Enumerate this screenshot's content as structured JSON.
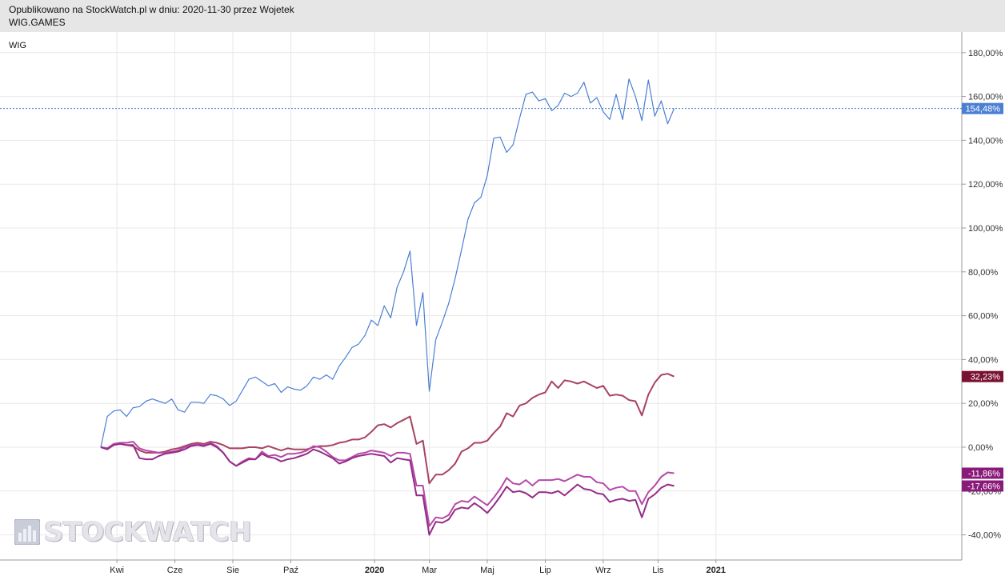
{
  "header": {
    "line1": "Opublikowano na StockWatch.pl w dniu: 2020-11-30 przez Wojetek",
    "line2": "WIG.GAMES"
  },
  "legend_label": "WIG",
  "logo_text": "STOCKWATCH",
  "colors": {
    "blue": "#4a7fd4",
    "red": "#a8435f",
    "magenta": "#b54aa8",
    "purple": "#952c88",
    "red_badge": "#7a1232",
    "purple_badge": "#8a1a7a",
    "header_bg": "#e6e6e6",
    "grid": "#e8e8e8"
  },
  "chart_data": {
    "type": "line",
    "title": "",
    "xlabel": "",
    "ylabel": "",
    "ylim": [
      -45,
      190
    ],
    "xlim": [
      0,
      107
    ],
    "grid": true,
    "y_ticks": [
      180,
      160,
      140,
      120,
      100,
      80,
      60,
      40,
      20,
      0,
      -20,
      -40
    ],
    "y_tick_labels": [
      "180,00%",
      "160,00%",
      "140,00%",
      "120,00%",
      "100,00%",
      "80,00%",
      "60,00%",
      "40,00%",
      "20,00%",
      "0,00%",
      "-20,00%",
      "-40,00%"
    ],
    "x_ticks": [
      {
        "x": 2.5,
        "label": "Kwi",
        "bold": false
      },
      {
        "x": 11.5,
        "label": "Cze",
        "bold": false
      },
      {
        "x": 20.5,
        "label": "Sie",
        "bold": false
      },
      {
        "x": 29.5,
        "label": "Paź",
        "bold": false
      },
      {
        "x": 42.5,
        "label": "2020",
        "bold": true
      },
      {
        "x": 51,
        "label": "Mar",
        "bold": false
      },
      {
        "x": 60,
        "label": "Maj",
        "bold": false
      },
      {
        "x": 69,
        "label": "Lip",
        "bold": false
      },
      {
        "x": 78,
        "label": "Wrz",
        "bold": false
      },
      {
        "x": 86.5,
        "label": "Lis",
        "bold": false
      },
      {
        "x": 95.5,
        "label": "2021",
        "bold": true
      }
    ],
    "series": [
      {
        "color_key": "blue",
        "stroke_width": 1.2,
        "last_label": "154,48%",
        "badge_color_key": "blue",
        "dotted_line": true,
        "values": [
          0,
          14,
          16.5,
          17,
          14,
          18,
          18.5,
          21,
          22,
          21,
          20,
          22,
          17,
          16,
          20.5,
          20.5,
          20,
          24,
          23.5,
          22,
          19,
          21,
          26,
          31,
          32,
          30,
          28,
          29,
          25,
          27.5,
          26.5,
          26,
          28,
          32,
          31,
          33,
          31,
          37,
          41,
          45.5,
          47,
          51,
          58,
          55.5,
          64.5,
          59,
          73,
          80,
          89.5,
          55.5,
          70.5,
          25.5,
          49,
          57,
          65.5,
          77,
          90,
          104,
          111.5,
          114,
          124,
          141,
          141.5,
          134.5,
          138,
          150,
          161,
          162,
          158,
          159,
          153.5,
          156,
          161.5,
          160,
          161.5,
          166.5,
          157,
          159.5,
          153,
          149.5,
          161,
          149.5,
          168,
          160,
          149,
          167.5,
          151,
          158,
          147.5,
          154.5
        ]
      },
      {
        "color_key": "red",
        "stroke_width": 2,
        "last_label": "32,23%",
        "badge_color_key": "red_badge",
        "dotted_line": false,
        "values": [
          0,
          -0.5,
          1.5,
          1.5,
          1,
          0.5,
          -1.5,
          -2.5,
          -2.5,
          -2.5,
          -2,
          -1,
          -0.5,
          0.5,
          1.5,
          2,
          1.5,
          2.5,
          2,
          1,
          -0.5,
          -0.5,
          -0.5,
          0,
          0,
          -0.5,
          0.5,
          -0.5,
          -1.5,
          -0.5,
          -1,
          -1,
          -1,
          0,
          0.5,
          0.5,
          1,
          2,
          2.5,
          3.5,
          3.5,
          4.5,
          7,
          10,
          10.5,
          9,
          11,
          12.5,
          14,
          1.5,
          3,
          -16.5,
          -12.5,
          -12.5,
          -10.5,
          -7.5,
          -2,
          -0.5,
          2,
          2,
          3,
          6.5,
          9.5,
          15.5,
          14,
          19,
          20,
          22.5,
          24,
          25,
          30,
          27,
          30.5,
          30,
          29,
          30,
          28.5,
          27,
          28,
          23.5,
          24,
          23.5,
          21.5,
          21,
          14.5,
          24,
          29.5,
          33,
          33.5,
          32.23
        ]
      },
      {
        "color_key": "magenta",
        "stroke_width": 2,
        "last_label": "-11,86%",
        "badge_color_key": "purple_badge",
        "dotted_line": false,
        "values": [
          0,
          -0.5,
          1.5,
          2,
          2,
          2.5,
          -0.5,
          -1.5,
          -2,
          -2.5,
          -2.5,
          -2,
          -1.5,
          0,
          1,
          1.5,
          1,
          2,
          0.5,
          -2.5,
          -6.5,
          -8.5,
          -6.5,
          -5,
          -5.5,
          -2,
          -4,
          -3.5,
          -4.5,
          -3,
          -3,
          -2.5,
          -1.5,
          0.5,
          0,
          -2,
          -4.5,
          -6,
          -6,
          -4.5,
          -3,
          -2.5,
          -1.5,
          -2,
          -2.5,
          -4,
          -2.5,
          -2.5,
          -3,
          -17.5,
          -17.5,
          -36,
          -32,
          -32.5,
          -31,
          -26,
          -24.5,
          -25,
          -22.5,
          -24.5,
          -26.5,
          -23,
          -19,
          -14,
          -16.5,
          -17,
          -15,
          -17.5,
          -15,
          -15,
          -15,
          -14.5,
          -15.5,
          -14,
          -12.5,
          -13.5,
          -13.5,
          -16,
          -16.5,
          -19.5,
          -18.5,
          -18,
          -20,
          -20,
          -26,
          -20.5,
          -17.5,
          -13.5,
          -11.5,
          -11.86
        ]
      },
      {
        "color_key": "purple",
        "stroke_width": 2,
        "last_label": "-17,66%",
        "badge_color_key": "purple_badge",
        "dotted_line": false,
        "values": [
          0,
          -1,
          1,
          1.5,
          1,
          1,
          -5,
          -5.5,
          -5.5,
          -4,
          -3,
          -2.5,
          -2,
          -1,
          0.5,
          1,
          0.5,
          1.5,
          0,
          -2.5,
          -6.5,
          -8.5,
          -7,
          -5.5,
          -5.5,
          -3,
          -4.5,
          -5,
          -6.5,
          -5.5,
          -5,
          -4,
          -3,
          -1,
          -2,
          -3.5,
          -5,
          -7.5,
          -6.5,
          -5,
          -4,
          -3.5,
          -3,
          -3.5,
          -4,
          -7,
          -5,
          -5.5,
          -6,
          -22,
          -22,
          -40,
          -34,
          -34.5,
          -33,
          -28.5,
          -27.5,
          -28,
          -25.5,
          -27.5,
          -30,
          -26.5,
          -22.5,
          -18,
          -20.5,
          -20,
          -21,
          -23,
          -20.5,
          -20.5,
          -21,
          -20,
          -22,
          -19.5,
          -17,
          -19,
          -19.5,
          -21,
          -21.5,
          -25,
          -24,
          -23.5,
          -24.5,
          -24,
          -32,
          -23.5,
          -21.5,
          -18.5,
          -17,
          -17.66
        ]
      }
    ]
  }
}
